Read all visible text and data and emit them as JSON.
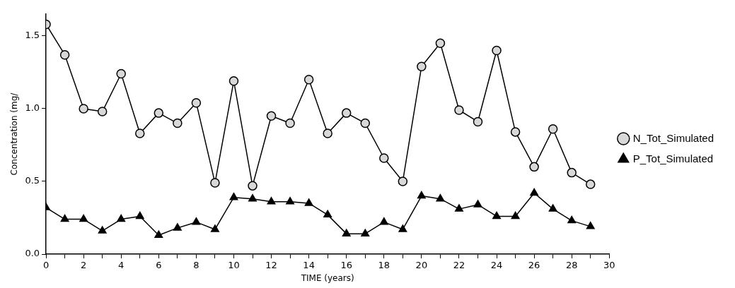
{
  "chart_data": {
    "type": "line",
    "xlabel": "TIME (years)",
    "ylabel": "Concentration (mg/",
    "x": [
      0,
      1,
      2,
      3,
      4,
      5,
      6,
      7,
      8,
      9,
      10,
      11,
      12,
      13,
      14,
      15,
      16,
      17,
      18,
      19,
      20,
      21,
      22,
      23,
      24,
      25,
      26,
      27,
      28,
      29
    ],
    "series": [
      {
        "name": "N_Tot_Simulated",
        "color": "#000000",
        "marker": "circle",
        "values": [
          1.58,
          1.37,
          1.0,
          0.98,
          1.24,
          0.83,
          0.97,
          0.9,
          1.04,
          0.49,
          1.19,
          0.47,
          0.95,
          0.9,
          1.2,
          0.83,
          0.97,
          0.9,
          0.66,
          0.5,
          1.29,
          1.45,
          0.99,
          0.91,
          1.4,
          0.84,
          0.6,
          0.86,
          0.56,
          0.48
        ]
      },
      {
        "name": "P_Tot_Simulated",
        "color": "#000000",
        "marker": "triangle",
        "values": [
          0.32,
          0.24,
          0.24,
          0.16,
          0.24,
          0.26,
          0.13,
          0.18,
          0.22,
          0.17,
          0.39,
          0.38,
          0.36,
          0.36,
          0.35,
          0.27,
          0.14,
          0.14,
          0.22,
          0.17,
          0.4,
          0.38,
          0.31,
          0.34,
          0.26,
          0.26,
          0.42,
          0.31,
          0.23,
          0.19
        ]
      }
    ],
    "xlim": [
      0,
      30
    ],
    "xticks": [
      0,
      {
        "value": 1,
        "label": null
      },
      2,
      {
        "value": 3,
        "label": null
      },
      4,
      {
        "value": 5,
        "label": null
      },
      6,
      {
        "value": 7,
        "label": null
      },
      8,
      {
        "value": 9,
        "label": null
      },
      10,
      {
        "value": 11,
        "label": null
      },
      12,
      {
        "value": 13,
        "label": null
      },
      14,
      {
        "value": 15,
        "label": null
      },
      16,
      {
        "value": 17,
        "label": null
      },
      18,
      {
        "value": 19,
        "label": null
      },
      20,
      {
        "value": 21,
        "label": null
      },
      22,
      {
        "value": 23,
        "label": null
      },
      24,
      {
        "value": 25,
        "label": null
      },
      26,
      {
        "value": 27,
        "label": null
      },
      28,
      {
        "value": 29,
        "label": null
      },
      30
    ],
    "ylim": [
      0,
      1.65
    ],
    "yticks": [
      {
        "value": 0,
        "label": "0.0"
      },
      {
        "value": 0.5,
        "label": "0.5"
      },
      {
        "value": 1,
        "label": "1.0"
      },
      {
        "value": 1.5,
        "label": "1.5"
      }
    ],
    "grid": false,
    "legend": "right",
    "line_style": "solid"
  }
}
